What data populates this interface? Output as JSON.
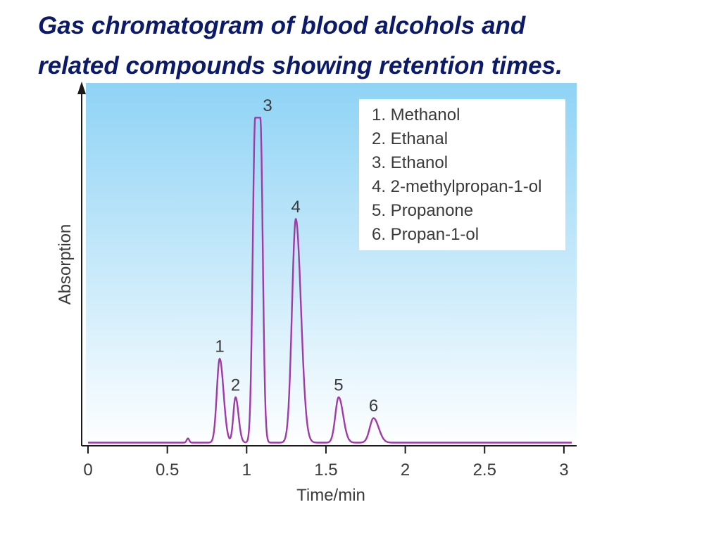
{
  "slide": {
    "title_line1": "Gas chromatogram of blood alcohols and",
    "title_line2": "related compounds showing retention times."
  },
  "colors": {
    "title": "#0c1a6b",
    "trace": "#a03aa8",
    "plot_bg_top": "#8fd3f5",
    "plot_bg_bottom": "#ffffff",
    "axis": "#1a1a1a"
  },
  "chart_data": {
    "type": "line",
    "title": "",
    "xlabel": "Time/min",
    "ylabel": "Absorption",
    "xlim": [
      0,
      3.05
    ],
    "ylim": [
      0,
      1
    ],
    "x_ticks": [
      "0",
      "0.5",
      "1",
      "1.5",
      "2",
      "2.5",
      "3"
    ],
    "x_tick_values": [
      0,
      0.5,
      1,
      1.5,
      2,
      2.5,
      3
    ],
    "grid": false,
    "baseline": 0.005,
    "peaks": [
      {
        "label": "1",
        "name": "Methanol",
        "retention_time": 0.83,
        "height": 0.24
      },
      {
        "label": "2",
        "name": "Ethanal",
        "retention_time": 0.93,
        "height": 0.13
      },
      {
        "label": "3",
        "name": "Ethanol",
        "retention_time": 1.07,
        "height": 0.93
      },
      {
        "label": "4",
        "name": "2-methylpropan-1-ol",
        "retention_time": 1.31,
        "height": 0.64
      },
      {
        "label": "5",
        "name": "Propanone",
        "retention_time": 1.58,
        "height": 0.13
      },
      {
        "label": "6",
        "name": "Propan-1-ol",
        "retention_time": 1.8,
        "height": 0.07
      }
    ],
    "legend": {
      "position": "top-right",
      "entries": [
        "1. Methanol",
        "2. Ethanal",
        "3. Ethanol",
        "4. 2-methylpropan-1-ol",
        "5. Propanone",
        "6. Propan-1-ol"
      ]
    }
  }
}
